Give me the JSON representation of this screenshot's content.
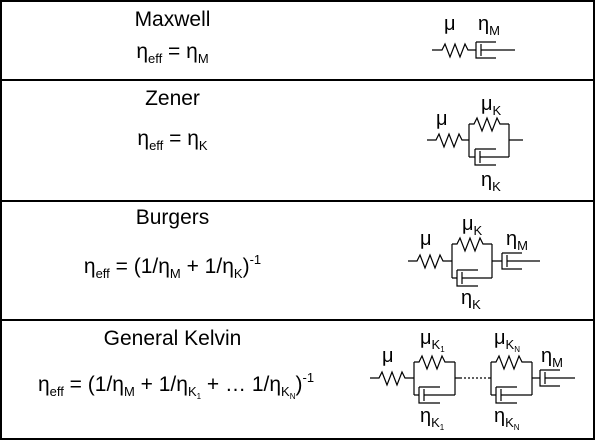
{
  "rows": [
    {
      "name": "Maxwell",
      "formula": {
        "lhs": "η",
        "lhs_sub": "eff",
        "eq": " = η",
        "rhs_sub": "M"
      },
      "diagram": {
        "mu": "μ",
        "eta": "η",
        "eta_sub": "M"
      }
    },
    {
      "name": "Zener",
      "formula": {
        "lhs": "η",
        "lhs_sub": "eff",
        "eq": " = η",
        "rhs_sub": "K"
      },
      "diagram": {
        "mu": "μ",
        "mu_k": "μ",
        "mu_k_sub": "K",
        "eta_k": "η",
        "eta_k_sub": "K"
      }
    },
    {
      "name": "Burgers",
      "formula": {
        "lhs": "η",
        "lhs_sub": "eff",
        "p1": " = (1/η",
        "s1": "M",
        "p2": " + 1/η",
        "s2": "K",
        "p3": ")",
        "sup": "-1"
      },
      "diagram": {
        "mu": "μ",
        "mu_k": "μ",
        "mu_k_sub": "K",
        "eta_m": "η",
        "eta_m_sub": "M",
        "eta_k": "η",
        "eta_k_sub": "K"
      }
    },
    {
      "name": "General Kelvin",
      "formula": {
        "lhs": "η",
        "lhs_sub": "eff",
        "p1": " = (1/η",
        "s1": "M",
        "p2": " + 1/η",
        "s2": "K",
        "s2b": "1",
        "p3": " + … 1/η",
        "s3": "K",
        "s3b": "N",
        "p4": ")",
        "sup": "-1"
      },
      "diagram": {
        "mu": "μ",
        "mu_k1": "μ",
        "mu_k1_sub": "K",
        "mu_k1_subsub": "1",
        "mu_kn": "μ",
        "mu_kn_sub": "K",
        "mu_kn_subsub": "N",
        "eta_m": "η",
        "eta_m_sub": "M",
        "eta_k1": "η",
        "eta_k1_sub": "K",
        "eta_k1_subsub": "1",
        "eta_kn": "η",
        "eta_kn_sub": "K",
        "eta_kn_subsub": "N"
      }
    }
  ]
}
